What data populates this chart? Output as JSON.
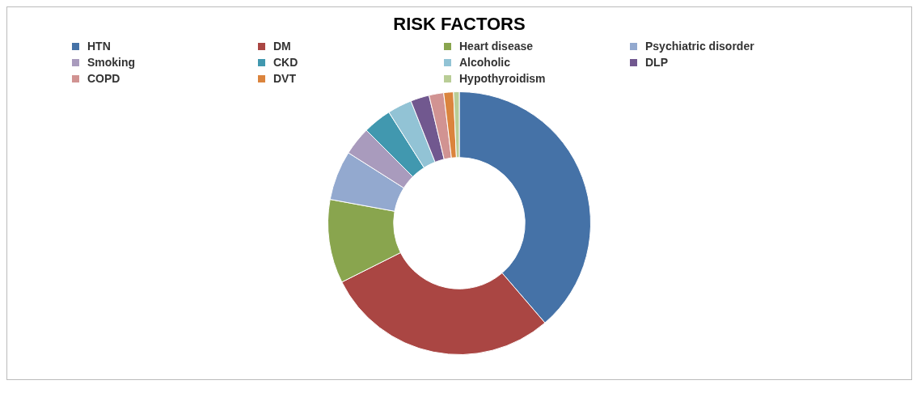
{
  "chart_data": {
    "type": "donut",
    "title": "RISK FACTORS",
    "categories": [
      "HTN",
      "DM",
      "Heart disease",
      "Psychiatric disorder",
      "Smoking",
      "CKD",
      "Alcoholic",
      "DLP",
      "COPD",
      "DVT",
      "Hypothyroidism"
    ],
    "values": [
      38.7,
      28.9,
      10.3,
      6.1,
      3.5,
      3.5,
      3.0,
      2.3,
      1.8,
      1.2,
      0.7
    ],
    "colors": [
      "#4572a7",
      "#aa4643",
      "#89a54e",
      "#93a9cf",
      "#a99bbd",
      "#4198af",
      "#92c3d5",
      "#71588f",
      "#d19392",
      "#db843d",
      "#b9cd96"
    ],
    "legend": "top"
  }
}
